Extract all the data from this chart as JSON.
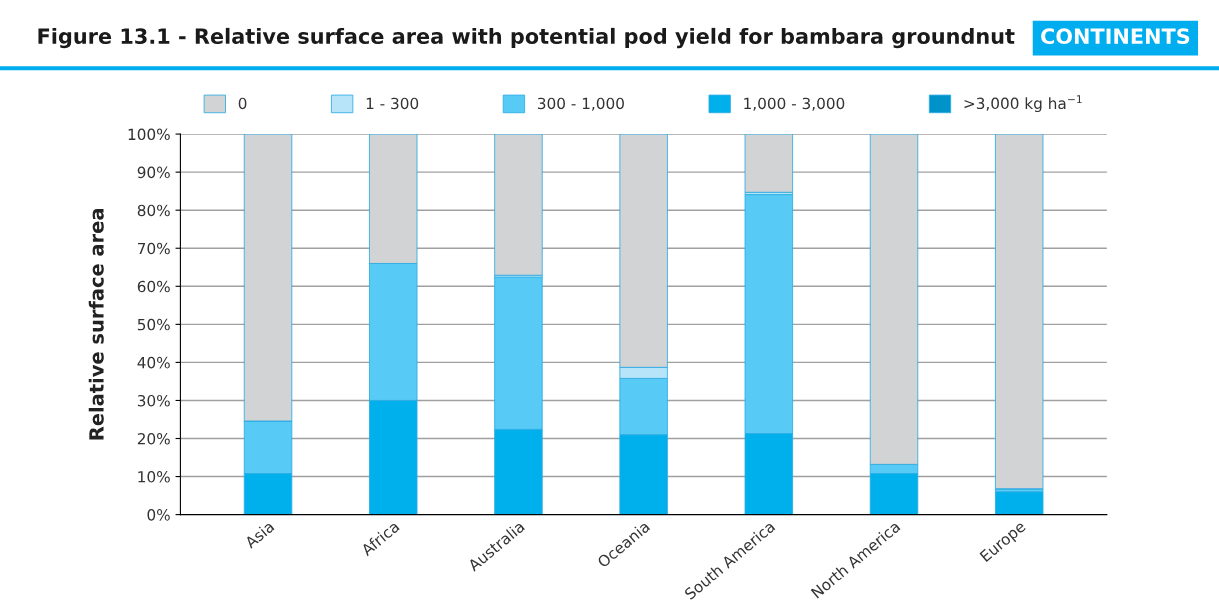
{
  "chart_data": {
    "type": "bar",
    "stacked": true,
    "title": "Figure 13.1 - Relative surface area with potential pod yield for bambara groundnut",
    "annotations": [
      "CONTINENTS"
    ],
    "ylabel": "Relative surface area",
    "categories": [
      "Asia",
      "Africa",
      "Australia",
      "Oceania",
      "South America",
      "North America",
      "Europe"
    ],
    "series": [
      {
        "name": ">3,000 kg ha$^{−1}$",
        "color": "#0093c9",
        "values": [
          0,
          0,
          0,
          0,
          0,
          0,
          0
        ]
      },
      {
        "name": "1,000 - 3,000",
        "color": "#00b0ec",
        "values": [
          10.8,
          30,
          22.4,
          21,
          21.3,
          10.8,
          6
        ]
      },
      {
        "name": "300 - 1,000",
        "color": "#57cbf5",
        "values": [
          13.8,
          36,
          40,
          14.8,
          62.8,
          2.4,
          0.8
        ]
      },
      {
        "name": "1 - 300",
        "color": "#b8e4f9",
        "values": [
          0,
          0,
          0.5,
          2.9,
          0.6,
          0,
          0
        ]
      },
      {
        "name": "0",
        "color": "#d1d3d5",
        "values": [
          75.4,
          34,
          37.1,
          61.3,
          15.3,
          86.8,
          93.2
        ]
      }
    ],
    "ylim": [
      0,
      100
    ],
    "yticks": [
      {
        "value": 0,
        "label": "0%"
      },
      {
        "value": 10,
        "label": "10%"
      },
      {
        "value": 20,
        "label": "20%"
      },
      {
        "value": 30,
        "label": "30%"
      },
      {
        "value": 40,
        "label": "40%"
      },
      {
        "value": 50,
        "label": "50%"
      },
      {
        "value": 60,
        "label": "60%"
      },
      {
        "value": 70,
        "label": "70%"
      },
      {
        "value": 80,
        "label": "80%"
      },
      {
        "value": 90,
        "label": "90%"
      },
      {
        "value": 100,
        "label": "100%"
      }
    ],
    "grid": "y",
    "legend": "top"
  }
}
